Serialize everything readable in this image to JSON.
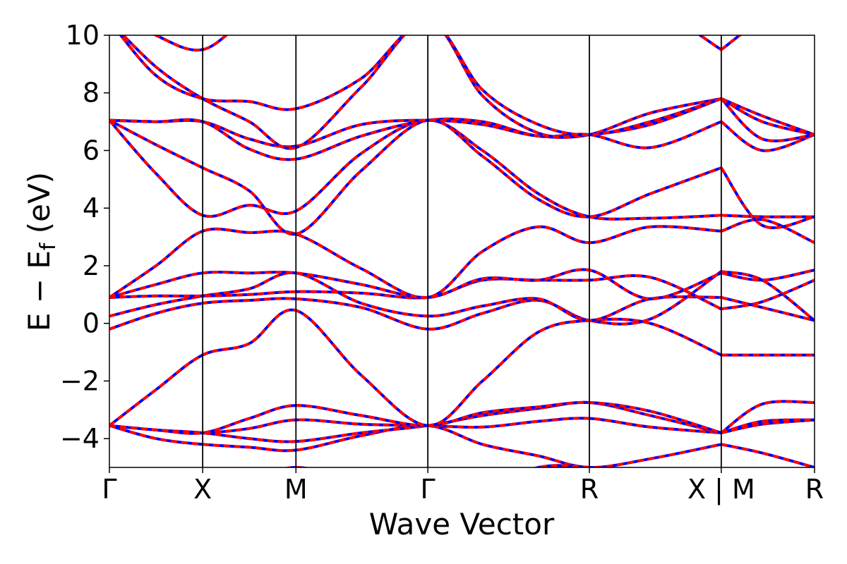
{
  "chart_data": {
    "type": "line",
    "xlabel": "Wave Vector",
    "ylabel_parts": {
      "main": "E − E",
      "sub": "f",
      "unit": " (eV)"
    },
    "ylim": [
      -5,
      10
    ],
    "yticks": [
      -4,
      -2,
      0,
      2,
      4,
      6,
      8,
      10
    ],
    "ytick_labels": [
      "−4",
      "−2",
      "0",
      "2",
      "4",
      "6",
      "8",
      "10"
    ],
    "kpoints": [
      {
        "label": "Γ",
        "x": 0.0
      },
      {
        "label": "X",
        "x": 0.5
      },
      {
        "label": "M",
        "x": 1.0
      },
      {
        "label": "Γ",
        "x": 1.707
      },
      {
        "label": "R",
        "x": 2.573
      },
      {
        "label": "X | M",
        "x": 3.28
      },
      {
        "label": "R",
        "x": 3.78
      }
    ],
    "xlim": [
      0,
      3.78
    ],
    "grid": false,
    "line_colors": {
      "primary": "#ff0000",
      "overlay": "#0000ff"
    },
    "series": [
      {
        "x": [
          0.0,
          0.25,
          0.5,
          0.75,
          1.0,
          1.35,
          1.707,
          2.0,
          2.3,
          2.573,
          2.9,
          3.28,
          3.5,
          3.78
        ],
        "values": [
          -3.55,
          -3.7,
          -3.8,
          -3.65,
          -3.35,
          -3.5,
          -3.55,
          -3.6,
          -3.4,
          -3.3,
          -3.6,
          -3.8,
          -3.5,
          -3.35
        ]
      },
      {
        "x": [
          0.0,
          0.25,
          0.5,
          0.75,
          1.0,
          1.35,
          1.707,
          2.0,
          2.3,
          2.573,
          2.9,
          3.28,
          3.5,
          3.78
        ],
        "values": [
          -3.55,
          -4.0,
          -4.2,
          -4.3,
          -4.4,
          -3.9,
          -3.55,
          -4.2,
          -4.6,
          -5.0,
          -4.7,
          -4.2,
          -4.5,
          -5.0
        ]
      },
      {
        "x": [
          0.0,
          0.25,
          0.5,
          0.75,
          1.0,
          1.35,
          1.707,
          2.0,
          2.3,
          2.573,
          2.9,
          3.28,
          3.5,
          3.78
        ],
        "values": [
          -3.55,
          -3.7,
          -3.8,
          -4.0,
          -4.1,
          -3.8,
          -3.55,
          -3.2,
          -2.95,
          -2.75,
          -3.2,
          -3.8,
          -3.4,
          -3.35
        ]
      },
      {
        "x": [
          0.0,
          0.25,
          0.5,
          0.75,
          1.0,
          1.35,
          1.707,
          2.0,
          2.3,
          2.573,
          2.9,
          3.28,
          3.5,
          3.78
        ],
        "values": [
          -3.55,
          -3.7,
          -3.8,
          -3.3,
          -2.85,
          -3.2,
          -3.55,
          -3.1,
          -2.9,
          -2.75,
          -3.05,
          -3.8,
          -2.8,
          -2.75
        ]
      },
      {
        "x": [
          0.0,
          0.25,
          0.5,
          0.75,
          1.0,
          1.35,
          1.707,
          2.0,
          2.3,
          2.573,
          2.9,
          3.28,
          3.5,
          3.78
        ],
        "values": [
          -3.55,
          -2.3,
          -1.1,
          -0.7,
          0.45,
          -1.8,
          -3.55,
          -2.0,
          -0.3,
          0.1,
          0.0,
          -1.1,
          -1.1,
          -1.1
        ]
      },
      {
        "x": [
          0.0,
          0.25,
          0.5,
          0.75,
          1.0,
          1.35,
          1.707,
          2.0,
          2.3,
          2.573,
          2.9,
          3.28,
          3.5,
          3.78
        ],
        "values": [
          -0.2,
          0.35,
          0.7,
          0.8,
          0.85,
          0.55,
          -0.2,
          0.35,
          0.8,
          0.1,
          0.15,
          1.8,
          1.5,
          0.1
        ]
      },
      {
        "x": [
          0.0,
          0.25,
          0.5,
          0.75,
          1.0,
          1.35,
          1.707,
          2.0,
          2.3,
          2.573,
          2.9,
          3.28,
          3.5,
          3.78
        ],
        "values": [
          0.25,
          0.65,
          0.95,
          1.2,
          1.75,
          0.7,
          0.25,
          0.6,
          0.85,
          0.1,
          0.85,
          0.9,
          0.55,
          0.1
        ]
      },
      {
        "x": [
          0.0,
          0.25,
          0.5,
          0.75,
          1.0,
          1.35,
          1.707,
          2.0,
          2.3,
          2.573,
          2.9,
          3.28,
          3.5,
          3.78
        ],
        "values": [
          0.9,
          0.95,
          0.95,
          1.0,
          1.1,
          1.05,
          0.9,
          1.5,
          1.5,
          1.5,
          1.6,
          0.5,
          0.75,
          1.5
        ]
      },
      {
        "x": [
          0.0,
          0.25,
          0.5,
          0.75,
          1.0,
          1.35,
          1.707,
          2.0,
          2.3,
          2.573,
          2.9,
          3.28,
          3.5,
          3.78
        ],
        "values": [
          0.9,
          1.35,
          1.75,
          1.75,
          1.75,
          1.35,
          0.9,
          1.55,
          1.5,
          1.85,
          0.85,
          1.75,
          1.5,
          1.85
        ]
      },
      {
        "x": [
          0.0,
          0.25,
          0.5,
          0.75,
          1.0,
          1.35,
          1.707,
          2.0,
          2.3,
          2.573,
          2.9,
          3.28,
          3.5,
          3.78
        ],
        "values": [
          0.9,
          2.0,
          3.2,
          3.15,
          3.1,
          1.9,
          0.9,
          2.5,
          3.35,
          2.8,
          3.35,
          3.2,
          3.6,
          2.8
        ]
      },
      {
        "x": [
          0.0,
          0.25,
          0.5,
          0.75,
          1.0,
          1.35,
          1.707,
          2.0,
          2.3,
          2.573,
          2.9,
          3.28,
          3.5,
          3.78
        ],
        "values": [
          7.05,
          5.2,
          3.75,
          4.1,
          3.9,
          5.9,
          7.05,
          6.0,
          4.5,
          3.7,
          3.65,
          3.75,
          3.7,
          3.7
        ]
      },
      {
        "x": [
          0.0,
          0.25,
          0.5,
          0.75,
          1.0,
          1.35,
          1.707,
          2.0,
          2.3,
          2.573,
          2.9,
          3.28,
          3.5,
          3.78
        ],
        "values": [
          7.05,
          6.2,
          5.4,
          4.6,
          3.1,
          5.3,
          7.05,
          5.8,
          4.3,
          3.7,
          4.5,
          5.4,
          3.4,
          3.7
        ]
      },
      {
        "x": [
          0.0,
          0.25,
          0.5,
          0.75,
          1.0,
          1.35,
          1.707,
          2.0,
          2.3,
          2.573,
          2.9,
          3.28,
          3.5,
          3.78
        ],
        "values": [
          7.05,
          7.0,
          7.0,
          6.05,
          5.7,
          6.5,
          7.05,
          7.0,
          6.5,
          6.55,
          6.1,
          7.0,
          6.0,
          6.55
        ]
      },
      {
        "x": [
          0.0,
          0.25,
          0.5,
          0.75,
          1.0,
          1.35,
          1.707,
          2.0,
          2.3,
          2.573,
          2.9,
          3.28,
          3.5,
          3.78
        ],
        "values": [
          7.05,
          7.0,
          7.0,
          6.4,
          6.15,
          6.9,
          7.05,
          6.9,
          6.5,
          6.55,
          7.3,
          7.8,
          6.4,
          6.55
        ]
      },
      {
        "x": [
          0.0,
          0.25,
          0.5,
          0.75,
          1.0,
          1.35,
          1.707,
          2.0,
          2.3,
          2.573,
          2.9,
          3.28,
          3.5,
          3.78
        ],
        "values": [
          10.5,
          8.9,
          7.8,
          7.0,
          6.1,
          8.2,
          10.5,
          7.9,
          6.6,
          6.55,
          6.9,
          7.8,
          7.0,
          6.55
        ]
      },
      {
        "x": [
          0.0,
          0.25,
          0.5,
          0.75,
          1.0,
          1.35,
          1.707,
          2.0,
          2.3,
          2.573,
          2.9,
          3.28,
          3.5,
          3.78
        ],
        "values": [
          10.5,
          8.6,
          7.8,
          7.7,
          7.45,
          8.5,
          10.5,
          8.1,
          6.9,
          6.55,
          7.0,
          7.8,
          7.2,
          6.55
        ]
      },
      {
        "x": [
          0.0,
          0.25,
          0.5,
          0.75,
          1.0,
          1.35,
          1.707,
          2.0,
          2.3,
          2.573,
          2.9,
          3.28,
          3.5,
          3.78
        ],
        "values": [
          11.0,
          10.0,
          9.5,
          10.6,
          11.0,
          11.0,
          11.0,
          11.0,
          11.0,
          11.0,
          11.0,
          9.5,
          10.5,
          11.0
        ]
      },
      {
        "x": [
          0.0,
          0.25,
          0.5,
          0.75,
          1.0,
          1.35,
          1.707,
          2.0,
          2.3,
          2.573,
          2.9,
          3.28,
          3.5,
          3.78
        ],
        "values": [
          -6.0,
          -6.0,
          -6.0,
          -5.5,
          -5.0,
          -5.5,
          -6.0,
          -5.8,
          -5.0,
          -5.0,
          -5.2,
          -5.6,
          -5.3,
          -5.0
        ]
      }
    ]
  }
}
